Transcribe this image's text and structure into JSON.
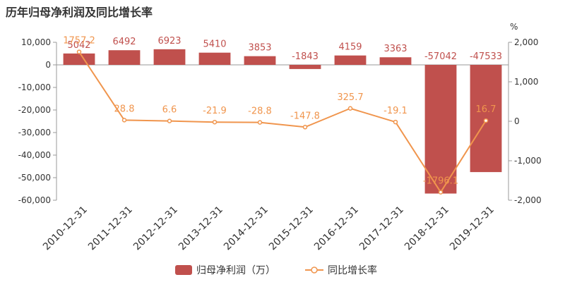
{
  "title": "历年归母净利润及同比增长率",
  "colors": {
    "bar": "#c0504d",
    "line": "#f0954d",
    "axis_text": "#333333",
    "axis_line": "#999999"
  },
  "chart_data": {
    "type": "bar",
    "title": "历年归母净利润及同比增长率",
    "categories": [
      "2010-12-31",
      "2011-12-31",
      "2012-12-31",
      "2013-12-31",
      "2014-12-31",
      "2015-12-31",
      "2016-12-31",
      "2017-12-31",
      "2018-12-31",
      "2019-12-31"
    ],
    "series": [
      {
        "name": "归母净利润（万）",
        "type": "bar",
        "axis": "left",
        "values": [
          5042,
          6492,
          6923,
          5410,
          3853,
          -1843,
          4159,
          3363,
          -57042,
          -47533
        ],
        "labels": [
          "5042",
          "6492",
          "6923",
          "5410",
          "3853",
          "-1843",
          "4159",
          "3363",
          "-57042",
          "-47533"
        ]
      },
      {
        "name": "同比增长率",
        "type": "line",
        "axis": "right",
        "values": [
          1757.2,
          28.8,
          6.6,
          -21.9,
          -28.8,
          -147.8,
          325.7,
          -19.1,
          -1796.1,
          16.7
        ],
        "labels": [
          "1757.2",
          "28.8",
          "6.6",
          "-21.9",
          "-28.8",
          "-147.8",
          "325.7",
          "-19.1",
          "-1796.1",
          "16.7"
        ]
      }
    ],
    "y_left": {
      "ylim": [
        -60000,
        10000
      ],
      "ticks": [
        "10,000",
        "0",
        "-10,000",
        "-20,000",
        "-30,000",
        "-40,000",
        "-50,000",
        "-60,000"
      ],
      "tick_values": [
        10000,
        0,
        -10000,
        -20000,
        -30000,
        -40000,
        -50000,
        -60000
      ]
    },
    "y_right": {
      "label": "%",
      "ylim": [
        -2000,
        2000
      ],
      "ticks": [
        "2,000",
        "1,000",
        "0",
        "-1,000",
        "-2,000"
      ],
      "tick_values": [
        2000,
        1000,
        0,
        -1000,
        -2000
      ]
    },
    "grid": false,
    "legend": "bottom-center"
  }
}
